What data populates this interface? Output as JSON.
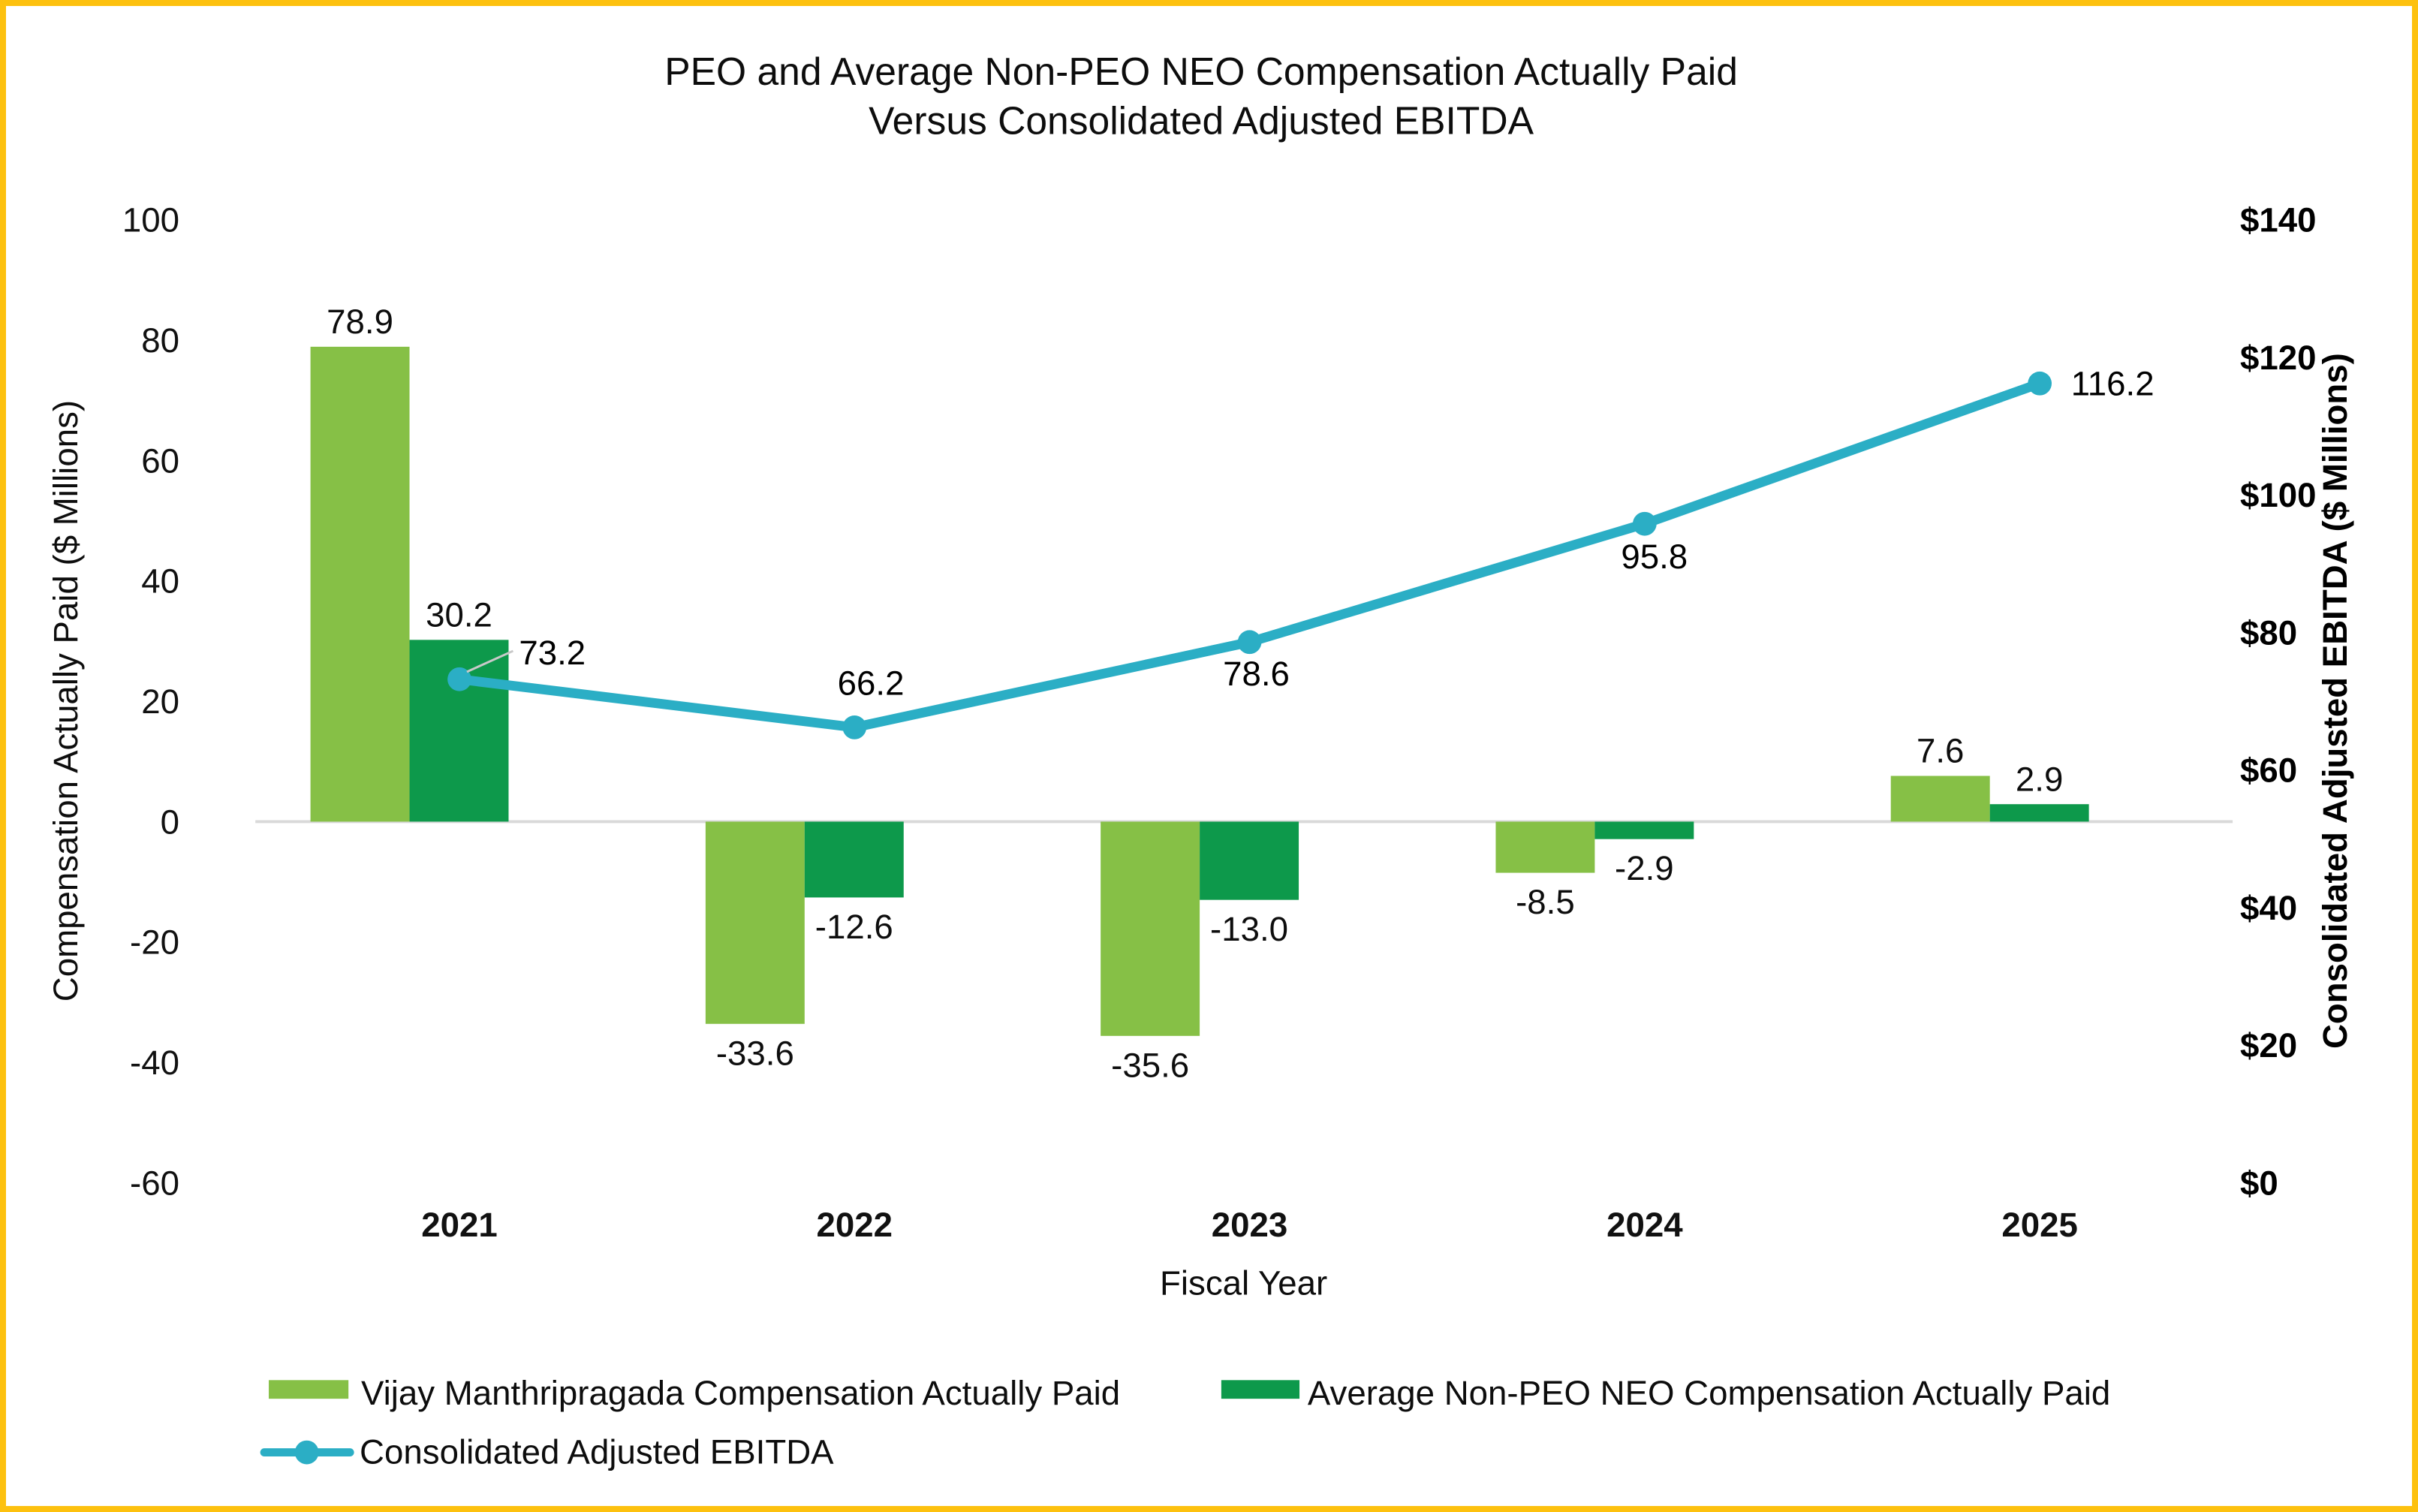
{
  "frame": {
    "border_color": "#FDC10F",
    "background_color": "#FFFFFF"
  },
  "chart_data": {
    "type": "bar",
    "subtype": "clustered-bar-with-line-combo",
    "title_line1": "PEO and Average Non-PEO NEO Compensation Actually Paid",
    "title_line2": "Versus Consolidated Adjusted EBITDA",
    "xlabel": "Fiscal Year",
    "categories": [
      "2021",
      "2022",
      "2023",
      "2024",
      "2025"
    ],
    "series": [
      {
        "name": "Vijay Manthripragada Compensation Actually Paid",
        "type": "bar",
        "axis": "left",
        "color": "#86C046",
        "values": [
          78.9,
          -33.6,
          -35.6,
          -8.5,
          7.6
        ],
        "labels": [
          "78.9",
          "-33.6",
          "-35.6",
          "-8.5",
          "7.6"
        ]
      },
      {
        "name": "Average Non-PEO NEO Compensation Actually Paid",
        "type": "bar",
        "axis": "left",
        "color": "#0D994B",
        "values": [
          30.2,
          -12.6,
          -13.0,
          -2.9,
          2.9
        ],
        "labels": [
          "30.2",
          "-12.6",
          "-13.0",
          "-2.9",
          "2.9"
        ]
      },
      {
        "name": "Consolidated Adjusted EBITDA",
        "type": "line",
        "axis": "right",
        "color": "#2BAEC5",
        "values": [
          73.2,
          66.2,
          78.6,
          95.8,
          116.2
        ],
        "labels": [
          "73.2",
          "66.2",
          "78.6",
          "95.8",
          "116.2"
        ]
      }
    ],
    "left_axis": {
      "title": "Compensation Actually Paid ($ Millions)",
      "min": -60,
      "max": 100,
      "step": 20,
      "ticks": [
        "100",
        "80",
        "60",
        "40",
        "20",
        "0",
        "-20",
        "-40",
        "-60"
      ],
      "color": "#111111"
    },
    "right_axis": {
      "title": "Consolidated Adjusted EBITDA ($ Millions)",
      "min": 0,
      "max": 140,
      "step": 20,
      "ticks": [
        "$140",
        "$120",
        "$100",
        "$80",
        "$60",
        "$40",
        "$20",
        "$0"
      ],
      "color": "#2BAEC5"
    },
    "grid": "zero-line-only",
    "gridline_color": "#D9D9D9",
    "leader_line_color": "#C9C9C9",
    "legend_position": "bottom-left"
  }
}
